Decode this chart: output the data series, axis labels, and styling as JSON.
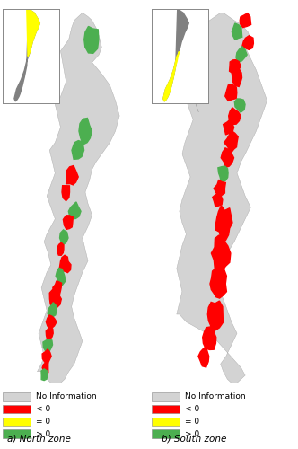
{
  "panel_a_label": "a) North zone",
  "panel_b_label": "b) South zone",
  "legend_items": [
    {
      "label": "No Information",
      "color": "#D3D3D3"
    },
    {
      "label": "< 0",
      "color": "#FF0000"
    },
    {
      "label": "= 0",
      "color": "#FFFF00"
    },
    {
      "label": "> 0",
      "color": "#4CAF50"
    }
  ],
  "background_color": "#FFFFFF",
  "legend_fontsize": 6.5,
  "label_fontsize": 7.5
}
